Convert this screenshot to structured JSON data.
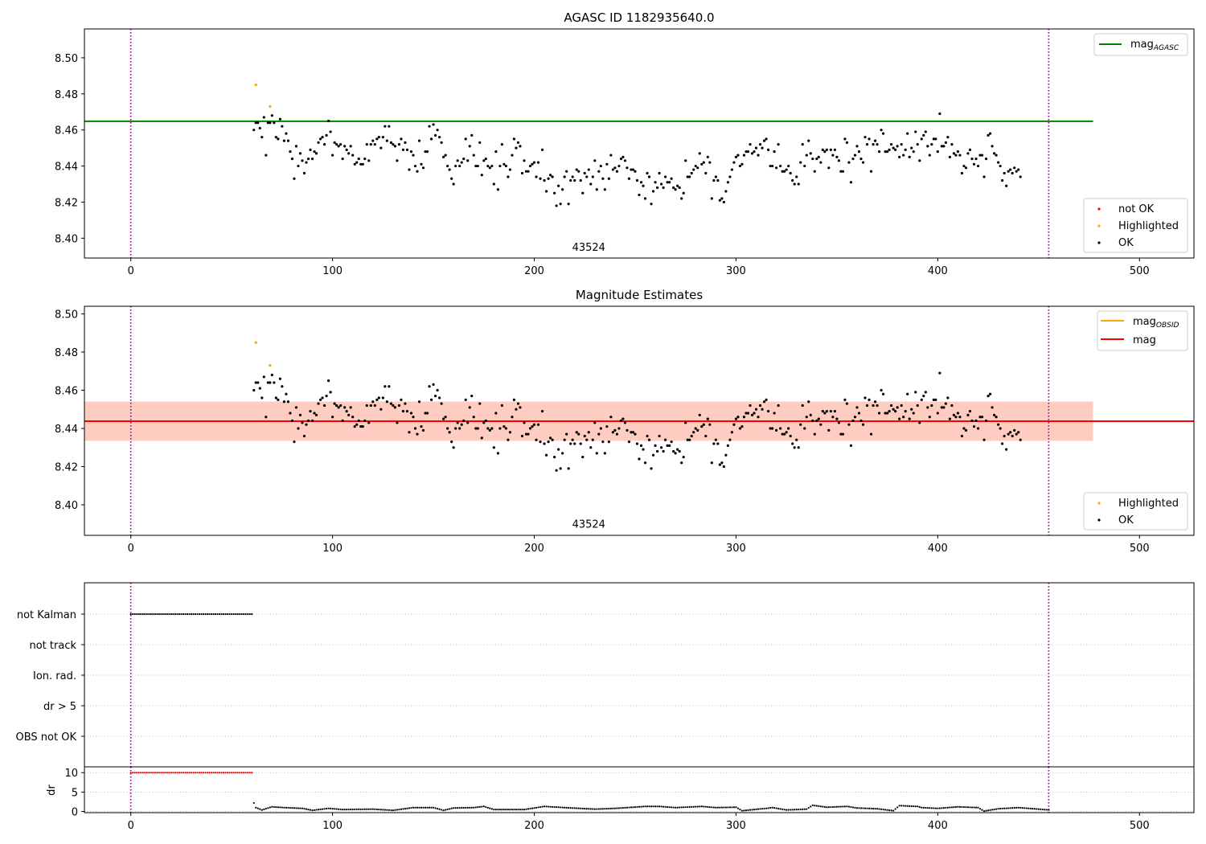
{
  "figure": {
    "background": "#ffffff"
  },
  "colors": {
    "ok": "#000000",
    "highlighted": "#ffa500",
    "not_ok": "#ff0000",
    "mag_agasc": "#008000",
    "mag_obsid": "#ffa500",
    "mag": "#ff0000",
    "obsid_band": "#ffa07a",
    "mag_band": "#ffc0cb",
    "vline": "#800080",
    "grid": "#b0b0b0"
  },
  "chart_data": [
    {
      "id": "agasc",
      "type": "scatter",
      "title": "AGASC ID 1182935640.0",
      "xlim": [
        -23,
        527
      ],
      "ylim": [
        8.389,
        8.516
      ],
      "xticks": [
        0,
        100,
        200,
        300,
        400,
        500
      ],
      "yticks": [
        8.4,
        8.42,
        8.44,
        8.46,
        8.48,
        8.5
      ],
      "yticklabels": [
        "8.40",
        "8.42",
        "8.44",
        "8.46",
        "8.48",
        "8.50"
      ],
      "hlines": [
        {
          "name": "mag",
          "sub": "AGASC",
          "y": 8.4648,
          "x": [
            -23,
            477
          ],
          "color": "#008000"
        }
      ],
      "vlines": [
        0,
        455
      ],
      "annotation": {
        "text": "43524",
        "x": 227,
        "y": 8.393
      },
      "legends": [
        {
          "position": "upper right",
          "entries": [
            {
              "kind": "line",
              "label": "mag",
              "sub": "AGASC",
              "color": "#008000"
            }
          ]
        },
        {
          "position": "lower right",
          "entries": [
            {
              "kind": "marker",
              "label": "not OK",
              "color": "#ff0000"
            },
            {
              "kind": "marker",
              "label": "Highlighted",
              "color": "#ffa500"
            },
            {
              "kind": "marker",
              "label": "OK",
              "color": "#000000"
            }
          ]
        }
      ],
      "series": [
        {
          "name": "Highlighted",
          "color": "#ffa500",
          "x": [
            62,
            69
          ],
          "y": [
            8.485,
            8.473
          ]
        },
        {
          "name": "OK",
          "color": "#000000",
          "x_start": 61,
          "x_step": 1,
          "y": [
            8.46,
            8.464,
            8.464,
            8.461,
            8.456,
            8.467,
            8.446,
            8.464,
            8.464,
            8.468,
            8.464,
            8.456,
            8.455,
            8.466,
            8.462,
            8.454,
            8.458,
            8.454,
            8.448,
            8.444,
            8.433,
            8.451,
            8.44,
            8.447,
            8.443,
            8.436,
            8.442,
            8.444,
            8.449,
            8.444,
            8.448,
            8.447,
            8.453,
            8.455,
            8.456,
            8.452,
            8.457,
            8.465,
            8.459,
            8.446,
            8.453,
            8.452,
            8.451,
            8.452,
            8.444,
            8.451,
            8.449,
            8.447,
            8.451,
            8.446,
            8.441,
            8.442,
            8.444,
            8.441,
            8.441,
            8.444,
            8.452,
            8.443,
            8.452,
            8.454,
            8.452,
            8.455,
            8.456,
            8.45,
            8.456,
            8.462,
            8.454,
            8.462,
            8.453,
            8.452,
            8.451,
            8.443,
            8.452,
            8.455,
            8.449,
            8.453,
            8.449,
            8.438,
            8.448,
            8.446,
            8.44,
            8.437,
            8.454,
            8.441,
            8.439,
            8.448,
            8.448,
            8.462,
            8.455,
            8.463,
            8.457,
            8.46,
            8.456,
            8.453,
            8.445,
            8.446,
            8.44,
            8.438,
            8.433,
            8.43,
            8.44,
            8.443,
            8.44,
            8.442,
            8.444,
            8.455,
            8.443,
            8.451,
            8.457,
            8.446,
            8.44,
            8.44,
            8.453,
            8.435,
            8.443,
            8.444,
            8.44,
            8.439,
            8.44,
            8.43,
            8.448,
            8.427,
            8.44,
            8.452,
            8.441,
            8.44,
            8.434,
            8.438,
            8.446,
            8.455,
            8.45,
            8.453,
            8.451,
            8.436,
            8.443,
            8.437,
            8.437,
            8.44,
            8.441,
            8.442,
            8.434,
            8.442,
            8.433,
            8.449,
            8.432,
            8.426,
            8.433,
            8.435,
            8.434,
            8.425,
            8.418,
            8.429,
            8.419,
            8.427,
            8.434,
            8.437,
            8.419,
            8.432,
            8.434,
            8.432,
            8.438,
            8.437,
            8.432,
            8.425,
            8.436,
            8.434,
            8.438,
            8.43,
            8.434,
            8.443,
            8.427,
            8.437,
            8.44,
            8.433,
            8.427,
            8.441,
            8.433,
            8.446,
            8.438,
            8.439,
            8.437,
            8.44,
            8.444,
            8.445,
            8.443,
            8.439,
            8.433,
            8.438,
            8.438,
            8.437,
            8.432,
            8.424,
            8.431,
            8.429,
            8.422,
            8.436,
            8.434,
            8.419,
            8.426,
            8.431,
            8.428,
            8.436,
            8.43,
            8.428,
            8.434,
            8.431,
            8.431,
            8.433,
            8.428,
            8.427,
            8.429,
            8.428,
            8.422,
            8.425,
            8.443,
            8.434,
            8.434,
            8.436,
            8.438,
            8.44,
            8.439,
            8.447,
            8.441,
            8.442,
            8.436,
            8.445,
            8.442,
            8.422,
            8.432,
            8.434,
            8.432,
            8.421,
            8.422,
            8.42,
            8.426,
            8.431,
            8.434,
            8.438,
            8.442,
            8.445,
            8.446,
            8.44,
            8.441,
            8.446,
            8.448,
            8.448,
            8.452,
            8.447,
            8.448,
            8.45,
            8.446,
            8.452,
            8.45,
            8.454,
            8.455,
            8.449,
            8.44,
            8.44,
            8.448,
            8.439,
            8.452,
            8.44,
            8.437,
            8.437,
            8.438,
            8.44,
            8.436,
            8.432,
            8.43,
            8.434,
            8.43,
            8.442,
            8.452,
            8.44,
            8.446,
            8.454,
            8.447,
            8.444,
            8.437,
            8.444,
            8.445,
            8.442,
            8.449,
            8.448,
            8.449,
            8.439,
            8.449,
            8.446,
            8.449,
            8.445,
            8.443,
            8.437,
            8.437,
            8.455,
            8.453,
            8.442,
            8.431,
            8.444,
            8.446,
            8.451,
            8.448,
            8.444,
            8.442,
            8.456,
            8.452,
            8.455,
            8.437,
            8.452,
            8.454,
            8.452,
            8.448,
            8.46,
            8.458,
            8.448,
            8.448,
            8.449,
            8.452,
            8.45,
            8.449,
            8.451,
            8.445,
            8.452,
            8.446,
            8.449,
            8.458,
            8.445,
            8.45,
            8.448,
            8.459,
            8.452,
            8.443,
            8.455,
            8.457,
            8.459,
            8.451,
            8.446,
            8.452,
            8.455,
            8.455,
            8.448,
            8.469,
            8.451,
            8.451,
            8.453,
            8.456,
            8.445,
            8.452,
            8.447,
            8.446,
            8.448,
            8.446,
            8.436,
            8.44,
            8.439,
            8.447,
            8.449,
            8.444,
            8.441,
            8.444,
            8.44,
            8.446,
            8.446,
            8.434,
            8.444,
            8.457,
            8.458,
            8.451,
            8.447,
            8.446,
            8.442,
            8.44,
            8.432,
            8.436,
            8.429,
            8.437,
            8.438,
            8.436,
            8.439,
            8.437,
            8.438,
            8.434
          ]
        }
      ]
    },
    {
      "id": "estimates",
      "type": "scatter",
      "title": "Magnitude Estimates",
      "xlim": [
        -23,
        527
      ],
      "ylim": [
        8.384,
        8.504
      ],
      "xticks": [
        0,
        100,
        200,
        300,
        400,
        500
      ],
      "yticks": [
        8.4,
        8.42,
        8.44,
        8.46,
        8.48,
        8.5
      ],
      "yticklabels": [
        "8.40",
        "8.42",
        "8.44",
        "8.46",
        "8.48",
        "8.50"
      ],
      "bands": [
        {
          "name": "mag",
          "x": [
            -23,
            477
          ],
          "y": [
            8.4335,
            8.4541
          ],
          "color": "#ffc0cb",
          "opacity": 0.45
        },
        {
          "name": "mag_OBSID",
          "x": [
            -23,
            477
          ],
          "y": [
            8.4335,
            8.4541
          ],
          "color": "#ffa07a",
          "opacity": 0.35
        }
      ],
      "hlines": [
        {
          "name": "mag",
          "y": 8.4438,
          "x": [
            -23,
            527
          ],
          "color": "#ff0000"
        }
      ],
      "vlines": [
        0,
        455
      ],
      "annotation": {
        "text": "43524",
        "x": 227,
        "y": 8.388
      },
      "legends": [
        {
          "position": "upper right",
          "entries": [
            {
              "kind": "line",
              "label": "mag",
              "sub": "OBSID",
              "color": "#ffa500"
            },
            {
              "kind": "line",
              "label": "mag",
              "sub": "",
              "color": "#ff0000"
            }
          ]
        },
        {
          "position": "lower right",
          "entries": [
            {
              "kind": "marker",
              "label": "Highlighted",
              "color": "#ffa500"
            },
            {
              "kind": "marker",
              "label": "OK",
              "color": "#000000"
            }
          ]
        }
      ],
      "series_ref": "agasc"
    },
    {
      "id": "flags",
      "type": "scatter",
      "title": "",
      "xlim": [
        -23,
        527
      ],
      "categories": [
        "not Kalman",
        "not track",
        "Ion. rad.",
        "dr > 5",
        "OBS not OK"
      ],
      "vlines": [
        0,
        455
      ],
      "series": [
        {
          "name": "not Kalman",
          "color": "#000000",
          "x_range": [
            0,
            60
          ],
          "category": "not Kalman"
        }
      ]
    },
    {
      "id": "dr",
      "type": "scatter",
      "title": "",
      "xlim": [
        -23,
        527
      ],
      "ylim": [
        -0.3,
        11.5
      ],
      "ylabel": "dr",
      "xticks": [
        0,
        100,
        200,
        300,
        400,
        500
      ],
      "xticklabels": [
        "0",
        "100",
        "200",
        "300",
        "400",
        "500"
      ],
      "yticks": [
        0,
        5,
        10
      ],
      "yticklabels": [
        "0",
        "5",
        "10"
      ],
      "vlines": [
        0,
        455
      ],
      "series": [
        {
          "name": "dr > 5",
          "color": "#ff0000",
          "x_range": [
            0,
            60
          ],
          "y_value": 10
        },
        {
          "name": "dr",
          "color": "#000000",
          "x_start": 61,
          "x_step": 1,
          "y_note": "values 0.0-2.2 along x"
        }
      ]
    }
  ],
  "dr_profile": [
    [
      61,
      2.2
    ],
    [
      62,
      1.0
    ],
    [
      65,
      0.4
    ],
    [
      70,
      1.2
    ],
    [
      76,
      1.0
    ],
    [
      85,
      0.8
    ],
    [
      90,
      0.3
    ],
    [
      98,
      0.8
    ],
    [
      105,
      0.5
    ],
    [
      120,
      0.6
    ],
    [
      130,
      0.3
    ],
    [
      140,
      1.0
    ],
    [
      150,
      1.0
    ],
    [
      155,
      0.3
    ],
    [
      160,
      0.9
    ],
    [
      170,
      1.0
    ],
    [
      175,
      1.3
    ],
    [
      180,
      0.5
    ],
    [
      195,
      0.5
    ],
    [
      205,
      1.3
    ],
    [
      215,
      1.0
    ],
    [
      230,
      0.6
    ],
    [
      240,
      0.8
    ],
    [
      255,
      1.3
    ],
    [
      262,
      1.3
    ],
    [
      270,
      1.0
    ],
    [
      283,
      1.3
    ],
    [
      290,
      1.0
    ],
    [
      300,
      1.1
    ],
    [
      303,
      0.2
    ],
    [
      315,
      0.8
    ],
    [
      318,
      1.0
    ],
    [
      325,
      0.4
    ],
    [
      335,
      0.6
    ],
    [
      338,
      1.6
    ],
    [
      345,
      1.1
    ],
    [
      355,
      1.3
    ],
    [
      360,
      0.9
    ],
    [
      370,
      0.7
    ],
    [
      378,
      0.2
    ],
    [
      381,
      1.5
    ],
    [
      390,
      1.3
    ],
    [
      392,
      1.0
    ],
    [
      400,
      0.8
    ],
    [
      410,
      1.2
    ],
    [
      420,
      1.0
    ],
    [
      423,
      0.1
    ],
    [
      430,
      0.7
    ],
    [
      440,
      1.0
    ],
    [
      450,
      0.6
    ],
    [
      455,
      0.4
    ]
  ]
}
